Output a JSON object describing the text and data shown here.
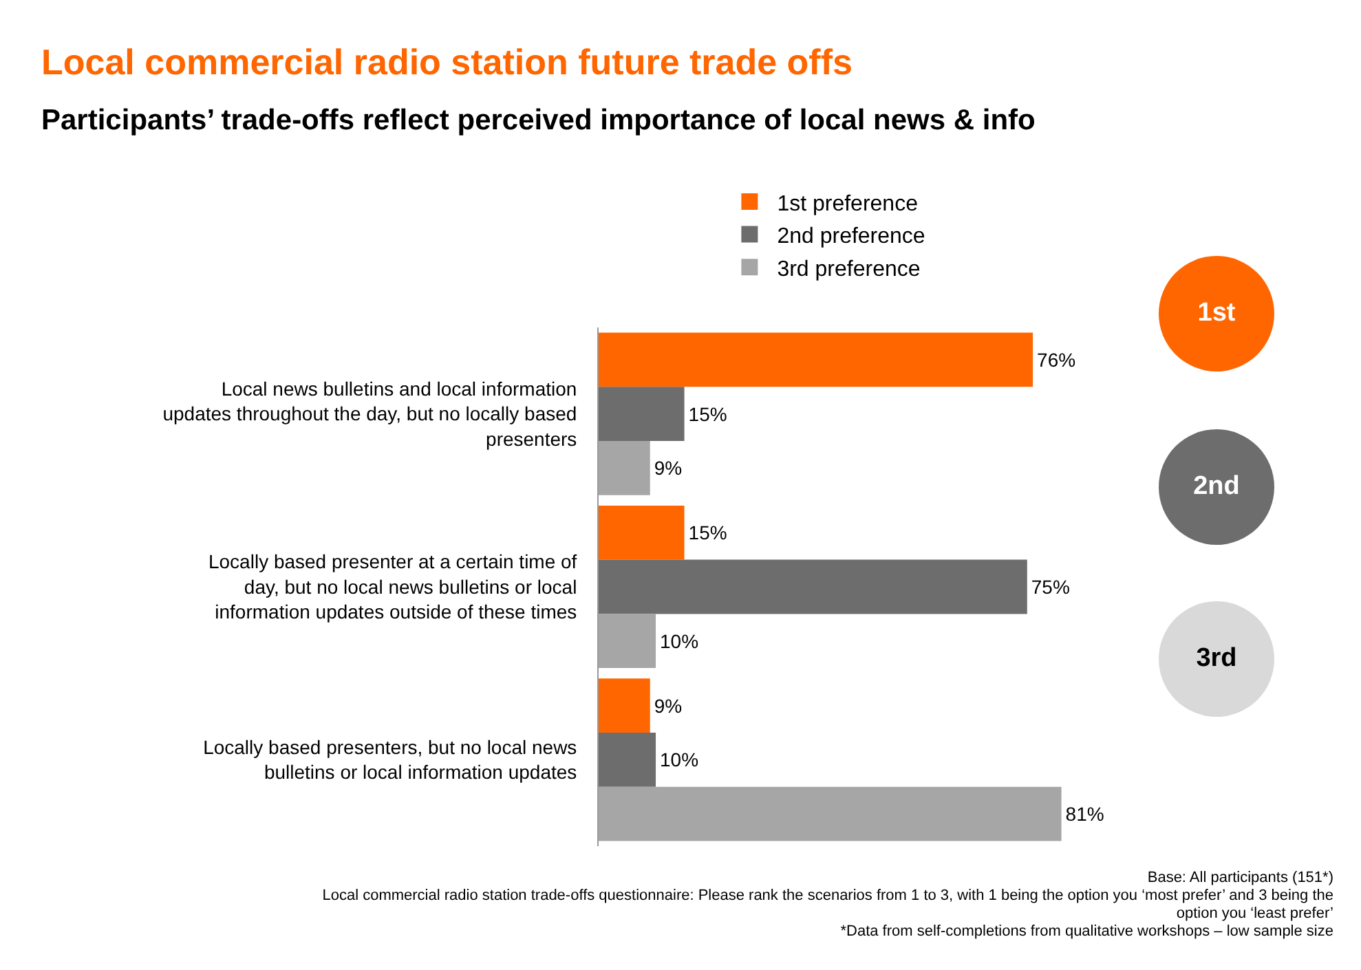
{
  "chart_data": {
    "type": "bar",
    "orientation": "horizontal",
    "title": "Local commercial radio station future trade offs",
    "subtitle": "Participants’ trade-offs reflect perceived importance of local news & info",
    "categories": [
      "Local news bulletins and local information updates throughout the day, but no locally based presenters",
      "Locally based presenter at a certain time of day, but no local news bulletins or local information updates outside of these times",
      "Locally based presenters, but no local news bulletins or local information updates"
    ],
    "series": [
      {
        "name": "1st preference",
        "color": "#ff6600",
        "values": [
          76,
          15,
          9
        ],
        "value_labels": [
          "76%",
          "15%",
          "9%"
        ]
      },
      {
        "name": "2nd preference",
        "color": "#6d6d6d",
        "values": [
          15,
          75,
          10
        ],
        "value_labels": [
          "15%",
          "75%",
          "10%"
        ]
      },
      {
        "name": "3rd preference",
        "color": "#a6a6a6",
        "values": [
          9,
          10,
          81
        ],
        "value_labels": [
          "9%",
          "10%",
          "81%"
        ]
      }
    ],
    "annotations": [
      "1st",
      "2nd",
      "3rd",
      "Base: All participants (151*)",
      "Local commercial radio station trade-offs questionnaire: Please rank the scenarios from 1 to 3, with 1 being the option you ‘most prefer’ and 3 being the option you ‘least prefer’",
      "*Data from self-completions from qualitative workshops – low sample size"
    ],
    "legend": "top",
    "grid": false
  }
}
